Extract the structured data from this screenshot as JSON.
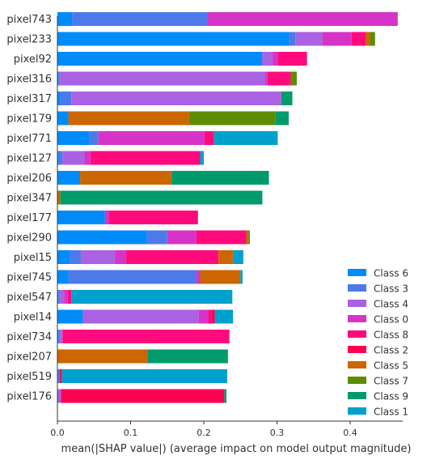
{
  "chart_data": {
    "type": "bar",
    "orientation": "horizontal",
    "stacked": true,
    "xlabel": "mean(|SHAP value|) (average impact on model output magnitude)",
    "ylabel": "",
    "xlim": [
      0,
      0.47
    ],
    "xticks": [
      "0.0",
      "0.1",
      "0.2",
      "0.3",
      "0.4"
    ],
    "grid": false,
    "legend_position": "lower-right",
    "categories": [
      "pixel743",
      "pixel233",
      "pixel92",
      "pixel316",
      "pixel317",
      "pixel179",
      "pixel771",
      "pixel127",
      "pixel206",
      "pixel347",
      "pixel177",
      "pixel290",
      "pixel15",
      "pixel745",
      "pixel547",
      "pixel14",
      "pixel734",
      "pixel207",
      "pixel519",
      "pixel176"
    ],
    "series": [
      {
        "name": "Class 6",
        "color": "#008bfb",
        "values": [
          0.02,
          0.317,
          0.28,
          0.002,
          0.004,
          0.015,
          0.044,
          0.002,
          0.031,
          0.0,
          0.065,
          0.122,
          0.017,
          0.015,
          0.002,
          0.035,
          0.002,
          0.0,
          0.0,
          0.0
        ]
      },
      {
        "name": "Class 3",
        "color": "#4d7ae8",
        "values": [
          0.185,
          0.008,
          0.0,
          0.0,
          0.015,
          0.0,
          0.012,
          0.005,
          0.0,
          0.0,
          0.0,
          0.028,
          0.015,
          0.175,
          0.0,
          0.0,
          0.0,
          0.0,
          0.003,
          0.0
        ]
      },
      {
        "name": "Class 4",
        "color": "#aa62e3",
        "values": [
          0.0,
          0.037,
          0.014,
          0.282,
          0.287,
          0.0,
          0.0,
          0.03,
          0.0,
          0.0,
          0.0,
          0.0,
          0.047,
          0.0,
          0.007,
          0.158,
          0.005,
          0.0,
          0.0,
          0.005
        ]
      },
      {
        "name": "Class 0",
        "color": "#d634c8",
        "values": [
          0.26,
          0.04,
          0.007,
          0.003,
          0.0,
          0.0,
          0.145,
          0.008,
          0.0,
          0.0,
          0.005,
          0.04,
          0.015,
          0.005,
          0.005,
          0.013,
          0.0,
          0.0,
          0.0,
          0.0
        ]
      },
      {
        "name": "Class 8",
        "color": "#ff0a7d",
        "values": [
          0.0,
          0.019,
          0.04,
          0.03,
          0.0,
          0.0,
          0.013,
          0.15,
          0.0,
          0.0,
          0.122,
          0.068,
          0.126,
          0.0,
          0.005,
          0.005,
          0.228,
          0.0,
          0.0,
          0.0
        ]
      },
      {
        "name": "Class 2",
        "color": "#ff0051",
        "values": [
          0.0,
          0.0,
          0.0,
          0.002,
          0.0,
          0.0,
          0.0,
          0.0,
          0.0,
          0.0,
          0.0,
          0.0,
          0.0,
          0.0,
          0.0,
          0.004,
          0.0,
          0.0,
          0.003,
          0.223
        ]
      },
      {
        "name": "Class 5",
        "color": "#cc6600",
        "values": [
          0.0,
          0.006,
          0.0,
          0.0,
          0.0,
          0.165,
          0.0,
          0.0,
          0.125,
          0.004,
          0.0,
          0.003,
          0.02,
          0.055,
          0.0,
          0.0,
          0.0,
          0.123,
          0.0,
          0.0
        ]
      },
      {
        "name": "Class 7",
        "color": "#5d8c04",
        "values": [
          0.0,
          0.007,
          0.0,
          0.008,
          0.0,
          0.118,
          0.0,
          0.0,
          0.0,
          0.0,
          0.0,
          0.002,
          0.0,
          0.0,
          0.0,
          0.0,
          0.0,
          0.0,
          0.0,
          0.0
        ]
      },
      {
        "name": "Class 9",
        "color": "#009b6d",
        "values": [
          0.0,
          0.0,
          0.0,
          0.0,
          0.015,
          0.018,
          0.0,
          0.0,
          0.133,
          0.276,
          0.0,
          0.0,
          0.0,
          0.0,
          0.0,
          0.0,
          0.0,
          0.11,
          0.0,
          0.003
        ]
      },
      {
        "name": "Class 1",
        "color": "#00a0cc",
        "values": [
          0.0,
          0.0,
          0.0,
          0.0,
          0.0,
          0.0,
          0.087,
          0.005,
          0.0,
          0.0,
          0.0,
          0.0,
          0.014,
          0.003,
          0.22,
          0.025,
          0.0,
          0.0,
          0.226,
          0.0
        ]
      }
    ],
    "legend_order": [
      "Class 6",
      "Class 3",
      "Class 4",
      "Class 0",
      "Class 8",
      "Class 2",
      "Class 5",
      "Class 7",
      "Class 9",
      "Class 1"
    ]
  }
}
